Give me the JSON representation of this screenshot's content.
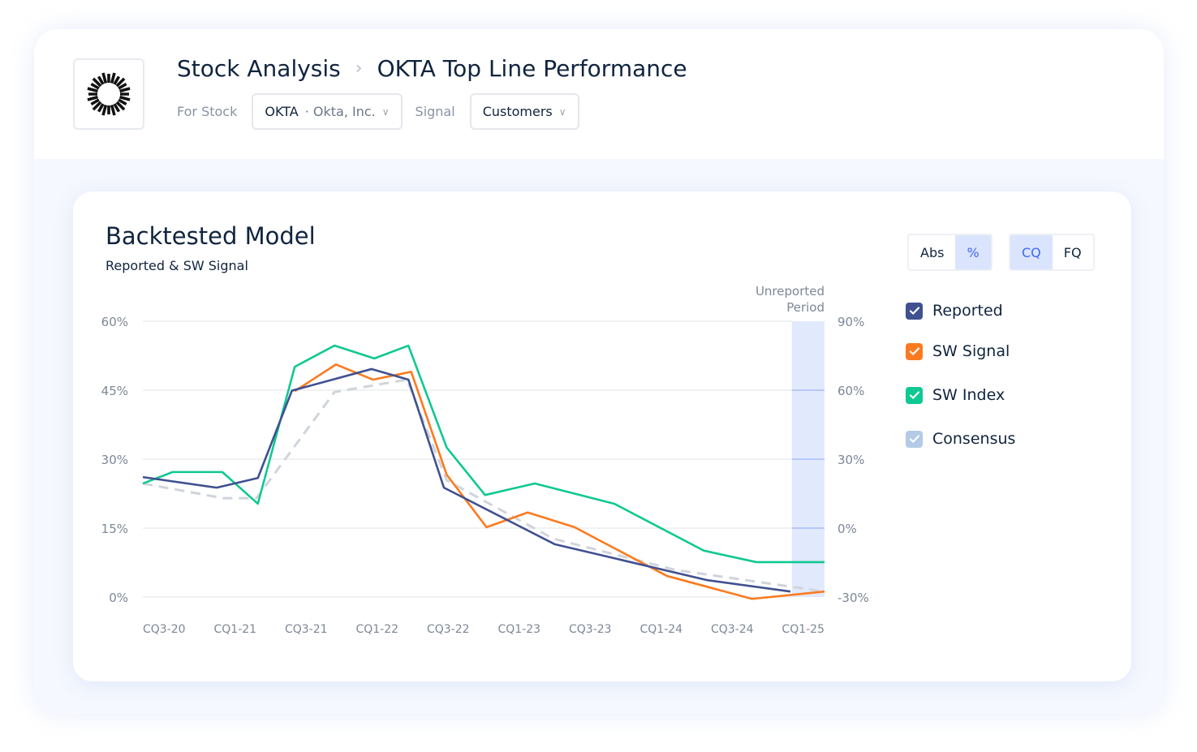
{
  "header": {
    "breadcrumb": [
      "Stock Analysis",
      "OKTA Top Line Performance"
    ],
    "stock_label": "For Stock",
    "stock_ticker": "OKTA",
    "stock_name": "· Okta, Inc.",
    "signal_label": "Signal",
    "signal_value": "Customers"
  },
  "card": {
    "title": "Backtested Model",
    "subtitle": "Reported & SW Signal",
    "toggle_mode": [
      "Abs",
      "%"
    ],
    "mode_selected": "%",
    "toggle_period": [
      "CQ",
      "FQ"
    ],
    "period_selected": "CQ"
  },
  "chart_data": {
    "type": "line",
    "x_units": "calendar year",
    "xlim": [
      2020.5,
      2025.3
    ],
    "x_ticks": [
      {
        "x": 2020.5,
        "label": "CQ3-20"
      },
      {
        "x": 2021.0,
        "label": "CQ1-21"
      },
      {
        "x": 2021.5,
        "label": "CQ3-21"
      },
      {
        "x": 2022.0,
        "label": "CQ1-22"
      },
      {
        "x": 2022.5,
        "label": "CQ3-22"
      },
      {
        "x": 2023.0,
        "label": "CQ1-23"
      },
      {
        "x": 2023.5,
        "label": "CQ3-23"
      },
      {
        "x": 2024.0,
        "label": "CQ1-24"
      },
      {
        "x": 2024.5,
        "label": "CQ3-24"
      },
      {
        "x": 2025.0,
        "label": "CQ1-25"
      }
    ],
    "ylim": [
      0,
      60
    ],
    "y_ticks": [
      0,
      15,
      30,
      45,
      60
    ],
    "y_tick_labels": [
      "0%",
      "15%",
      "30%",
      "45%",
      "60%"
    ],
    "y2lim": [
      -30,
      90
    ],
    "y2_ticks": [
      -30,
      0,
      30,
      60,
      90
    ],
    "y2_tick_labels": [
      "-30%",
      "0%",
      "30%",
      "60%",
      "90%"
    ],
    "grid": true,
    "legend_placement": "right",
    "annotation": {
      "label": "Unreported Period",
      "x_range": [
        2025.07,
        2025.3
      ],
      "color": "#e1e9fd"
    },
    "series": [
      {
        "name": "Reported",
        "color": "#3f5190",
        "dashed": false,
        "x": [
          2020.5,
          2021.02,
          2021.31,
          2021.55,
          2022.11,
          2022.37,
          2022.62,
          2023.4,
          2024.47,
          2025.06
        ],
        "y": [
          26.1,
          23.8,
          25.9,
          44.9,
          49.6,
          47.3,
          23.8,
          11.5,
          3.7,
          1.2
        ]
      },
      {
        "name": "SW Signal",
        "color": "#fb7a1f",
        "dashed": false,
        "x": [
          2021.57,
          2021.86,
          2022.12,
          2022.39,
          2022.64,
          2022.92,
          2023.21,
          2023.54,
          2024.19,
          2024.79,
          2025.3
        ],
        "y": [
          44.8,
          50.6,
          47.3,
          49.0,
          26.6,
          15.2,
          18.4,
          15.2,
          4.6,
          -0.4,
          1.2
        ]
      },
      {
        "name": "SW Index",
        "color": "#10c891",
        "dashed": false,
        "x": [
          2020.5,
          2020.71,
          2021.06,
          2021.31,
          2021.57,
          2021.85,
          2022.13,
          2022.37,
          2022.64,
          2022.91,
          2023.26,
          2023.82,
          2024.45,
          2024.82,
          2025.3
        ],
        "y": [
          24.7,
          27.2,
          27.2,
          20.3,
          50.1,
          54.7,
          51.9,
          54.7,
          32.5,
          22.2,
          24.7,
          20.3,
          10.1,
          7.6,
          7.6
        ]
      },
      {
        "name": "Consensus",
        "color": "#cfd4dc",
        "legend_color": "#b3cbe6",
        "dashed": true,
        "x": [
          2020.5,
          2021.07,
          2021.3,
          2021.85,
          2022.36,
          2022.64,
          2023.39,
          2024.25,
          2025.3
        ],
        "y": [
          24.7,
          21.5,
          21.5,
          44.6,
          47.3,
          25.4,
          12.7,
          5.9,
          1.2
        ]
      }
    ]
  }
}
